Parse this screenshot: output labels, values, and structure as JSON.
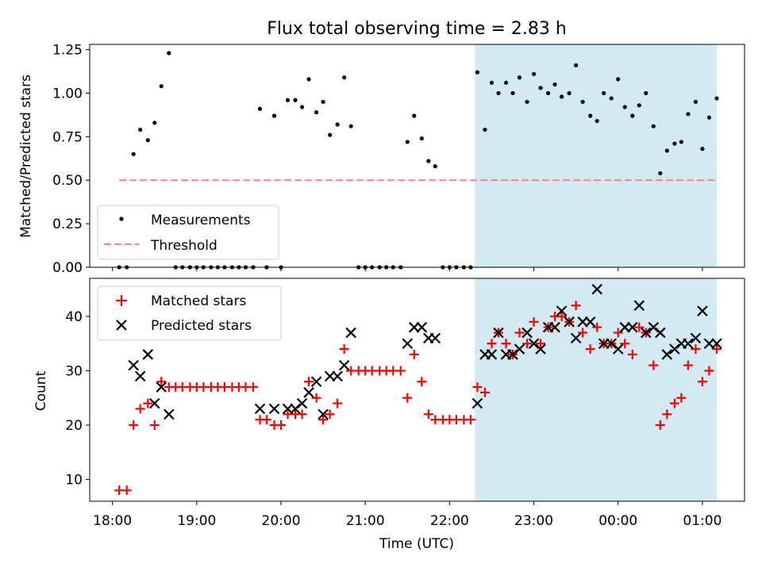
{
  "chart_data": [
    {
      "type": "scatter",
      "title": "Flux total observing time = 2.83 h",
      "ylabel": "Matched/Predicted stars",
      "xlabel": "",
      "ylim": [
        0,
        1.28
      ],
      "yticks": [
        "0.00",
        "0.25",
        "0.50",
        "0.75",
        "1.00",
        "1.25"
      ],
      "x_unit": "hours since 18:00 UTC",
      "xlim": [
        -0.27,
        7.5
      ],
      "shaded_region": {
        "x_start": 4.3,
        "x_end": 7.17,
        "color": "#add8e6"
      },
      "legend_position": "lower left",
      "series": [
        {
          "name": "Measurements",
          "marker": "dot",
          "color": "#000000",
          "points": [
            [
              0.08,
              0
            ],
            [
              0.17,
              0
            ],
            [
              0.25,
              0.65
            ],
            [
              0.33,
              0.79
            ],
            [
              0.42,
              0.73
            ],
            [
              0.5,
              0.83
            ],
            [
              0.58,
              1.04
            ],
            [
              0.67,
              1.23
            ],
            [
              0.75,
              0
            ],
            [
              0.83,
              0
            ],
            [
              0.92,
              0
            ],
            [
              1.0,
              0
            ],
            [
              1.08,
              0
            ],
            [
              1.17,
              0
            ],
            [
              1.25,
              0
            ],
            [
              1.33,
              0
            ],
            [
              1.42,
              0
            ],
            [
              1.5,
              0
            ],
            [
              1.58,
              0
            ],
            [
              1.67,
              0
            ],
            [
              1.75,
              0.91
            ],
            [
              1.83,
              0
            ],
            [
              1.92,
              0.87
            ],
            [
              2.0,
              0
            ],
            [
              2.08,
              0.96
            ],
            [
              2.17,
              0.96
            ],
            [
              2.25,
              0.92
            ],
            [
              2.33,
              1.08
            ],
            [
              2.42,
              0.89
            ],
            [
              2.5,
              0.95
            ],
            [
              2.58,
              0.76
            ],
            [
              2.67,
              0.82
            ],
            [
              2.75,
              1.09
            ],
            [
              2.83,
              0.81
            ],
            [
              2.92,
              0
            ],
            [
              3.0,
              0
            ],
            [
              3.08,
              0
            ],
            [
              3.17,
              0
            ],
            [
              3.25,
              0
            ],
            [
              3.33,
              0
            ],
            [
              3.42,
              0
            ],
            [
              3.5,
              0.72
            ],
            [
              3.58,
              0.87
            ],
            [
              3.67,
              0.74
            ],
            [
              3.75,
              0.61
            ],
            [
              3.83,
              0.58
            ],
            [
              3.92,
              0
            ],
            [
              4.0,
              0
            ],
            [
              4.08,
              0
            ],
            [
              4.17,
              0
            ],
            [
              4.25,
              0
            ],
            [
              4.33,
              1.12
            ],
            [
              4.42,
              0.79
            ],
            [
              4.5,
              1.06
            ],
            [
              4.58,
              1.0
            ],
            [
              4.67,
              1.06
            ],
            [
              4.75,
              1.0
            ],
            [
              4.83,
              1.09
            ],
            [
              4.92,
              0.95
            ],
            [
              5.0,
              1.11
            ],
            [
              5.08,
              1.03
            ],
            [
              5.17,
              1.0
            ],
            [
              5.25,
              1.05
            ],
            [
              5.33,
              0.98
            ],
            [
              5.42,
              1.0
            ],
            [
              5.5,
              1.16
            ],
            [
              5.58,
              0.95
            ],
            [
              5.67,
              0.87
            ],
            [
              5.75,
              0.84
            ],
            [
              5.83,
              1.0
            ],
            [
              5.92,
              0.97
            ],
            [
              6.0,
              1.08
            ],
            [
              6.08,
              0.92
            ],
            [
              6.17,
              0.87
            ],
            [
              6.25,
              0.93
            ],
            [
              6.33,
              1.0
            ],
            [
              6.42,
              0.81
            ],
            [
              6.5,
              0.54
            ],
            [
              6.58,
              0.67
            ],
            [
              6.67,
              0.71
            ],
            [
              6.75,
              0.72
            ],
            [
              6.83,
              0.88
            ],
            [
              6.92,
              0.95
            ],
            [
              7.0,
              0.68
            ],
            [
              7.08,
              0.86
            ],
            [
              7.17,
              0.97
            ]
          ]
        },
        {
          "name": "Threshold",
          "line": "dashed",
          "color": "#ff8080",
          "x_start": 0.08,
          "x_end": 7.17,
          "value": 0.5
        }
      ]
    },
    {
      "type": "scatter",
      "title": "",
      "ylabel": "Count",
      "xlabel": "Time (UTC)",
      "ylim": [
        6,
        47
      ],
      "yticks": [
        "10",
        "20",
        "30",
        "40"
      ],
      "xticks": [
        "18:00",
        "19:00",
        "20:00",
        "21:00",
        "22:00",
        "23:00",
        "00:00",
        "01:00"
      ],
      "x_unit": "hours since 18:00 UTC",
      "xlim": [
        -0.27,
        7.5
      ],
      "shaded_region": {
        "x_start": 4.3,
        "x_end": 7.17,
        "color": "#add8e6"
      },
      "legend_position": "upper left",
      "series": [
        {
          "name": "Matched stars",
          "marker": "plus",
          "color": "#ff0000",
          "points": [
            [
              0.08,
              8
            ],
            [
              0.17,
              8
            ],
            [
              0.25,
              20
            ],
            [
              0.33,
              23
            ],
            [
              0.42,
              24
            ],
            [
              0.5,
              20
            ],
            [
              0.58,
              28
            ],
            [
              0.67,
              27
            ],
            [
              0.75,
              27
            ],
            [
              0.83,
              27
            ],
            [
              0.92,
              27
            ],
            [
              1.0,
              27
            ],
            [
              1.08,
              27
            ],
            [
              1.17,
              27
            ],
            [
              1.25,
              27
            ],
            [
              1.33,
              27
            ],
            [
              1.42,
              27
            ],
            [
              1.5,
              27
            ],
            [
              1.58,
              27
            ],
            [
              1.67,
              27
            ],
            [
              1.75,
              21
            ],
            [
              1.83,
              21
            ],
            [
              1.92,
              20
            ],
            [
              2.0,
              20
            ],
            [
              2.08,
              22
            ],
            [
              2.17,
              22
            ],
            [
              2.25,
              22
            ],
            [
              2.33,
              28
            ],
            [
              2.42,
              25
            ],
            [
              2.5,
              21
            ],
            [
              2.58,
              22
            ],
            [
              2.67,
              24
            ],
            [
              2.75,
              34
            ],
            [
              2.83,
              30
            ],
            [
              2.92,
              30
            ],
            [
              3.0,
              30
            ],
            [
              3.08,
              30
            ],
            [
              3.17,
              30
            ],
            [
              3.25,
              30
            ],
            [
              3.33,
              30
            ],
            [
              3.42,
              30
            ],
            [
              3.5,
              25
            ],
            [
              3.58,
              33
            ],
            [
              3.67,
              28
            ],
            [
              3.75,
              22
            ],
            [
              3.83,
              21
            ],
            [
              3.92,
              21
            ],
            [
              4.0,
              21
            ],
            [
              4.08,
              21
            ],
            [
              4.17,
              21
            ],
            [
              4.25,
              21
            ],
            [
              4.33,
              27
            ],
            [
              4.42,
              26
            ],
            [
              4.5,
              35
            ],
            [
              4.58,
              37
            ],
            [
              4.67,
              35
            ],
            [
              4.75,
              33
            ],
            [
              4.83,
              37
            ],
            [
              4.92,
              35
            ],
            [
              5.0,
              39
            ],
            [
              5.08,
              35
            ],
            [
              5.17,
              38
            ],
            [
              5.25,
              40
            ],
            [
              5.33,
              40
            ],
            [
              5.42,
              39
            ],
            [
              5.5,
              42
            ],
            [
              5.58,
              37
            ],
            [
              5.67,
              34
            ],
            [
              5.75,
              38
            ],
            [
              5.83,
              35
            ],
            [
              5.92,
              35
            ],
            [
              6.0,
              37
            ],
            [
              6.08,
              35
            ],
            [
              6.17,
              33
            ],
            [
              6.25,
              38
            ],
            [
              6.33,
              37
            ],
            [
              6.42,
              31
            ],
            [
              6.5,
              20
            ],
            [
              6.58,
              22
            ],
            [
              6.67,
              24
            ],
            [
              6.75,
              25
            ],
            [
              6.83,
              31
            ],
            [
              6.92,
              34
            ],
            [
              7.0,
              28
            ],
            [
              7.08,
              30
            ],
            [
              7.17,
              34
            ]
          ]
        },
        {
          "name": "Predicted stars",
          "marker": "x",
          "color": "#000000",
          "points": [
            [
              0.25,
              31
            ],
            [
              0.33,
              29
            ],
            [
              0.42,
              33
            ],
            [
              0.5,
              24
            ],
            [
              0.58,
              27
            ],
            [
              0.67,
              22
            ],
            [
              1.75,
              23
            ],
            [
              1.92,
              23
            ],
            [
              2.08,
              23
            ],
            [
              2.17,
              23
            ],
            [
              2.25,
              24
            ],
            [
              2.33,
              26
            ],
            [
              2.42,
              28
            ],
            [
              2.5,
              22
            ],
            [
              2.58,
              29
            ],
            [
              2.67,
              29
            ],
            [
              2.75,
              31
            ],
            [
              2.83,
              37
            ],
            [
              3.5,
              35
            ],
            [
              3.58,
              38
            ],
            [
              3.67,
              38
            ],
            [
              3.75,
              36
            ],
            [
              3.83,
              36
            ],
            [
              4.33,
              24
            ],
            [
              4.42,
              33
            ],
            [
              4.5,
              33
            ],
            [
              4.58,
              37
            ],
            [
              4.67,
              33
            ],
            [
              4.75,
              33
            ],
            [
              4.83,
              34
            ],
            [
              4.92,
              37
            ],
            [
              5.0,
              35
            ],
            [
              5.08,
              34
            ],
            [
              5.17,
              38
            ],
            [
              5.25,
              38
            ],
            [
              5.33,
              41
            ],
            [
              5.42,
              39
            ],
            [
              5.5,
              36
            ],
            [
              5.58,
              39
            ],
            [
              5.67,
              39
            ],
            [
              5.75,
              45
            ],
            [
              5.83,
              35
            ],
            [
              5.92,
              35
            ],
            [
              6.0,
              34
            ],
            [
              6.08,
              38
            ],
            [
              6.17,
              38
            ],
            [
              6.25,
              42
            ],
            [
              6.33,
              37
            ],
            [
              6.42,
              38
            ],
            [
              6.5,
              37
            ],
            [
              6.58,
              33
            ],
            [
              6.67,
              34
            ],
            [
              6.75,
              35
            ],
            [
              6.83,
              35
            ],
            [
              6.92,
              36
            ],
            [
              7.0,
              41
            ],
            [
              7.08,
              35
            ],
            [
              7.17,
              35
            ]
          ]
        }
      ]
    }
  ]
}
